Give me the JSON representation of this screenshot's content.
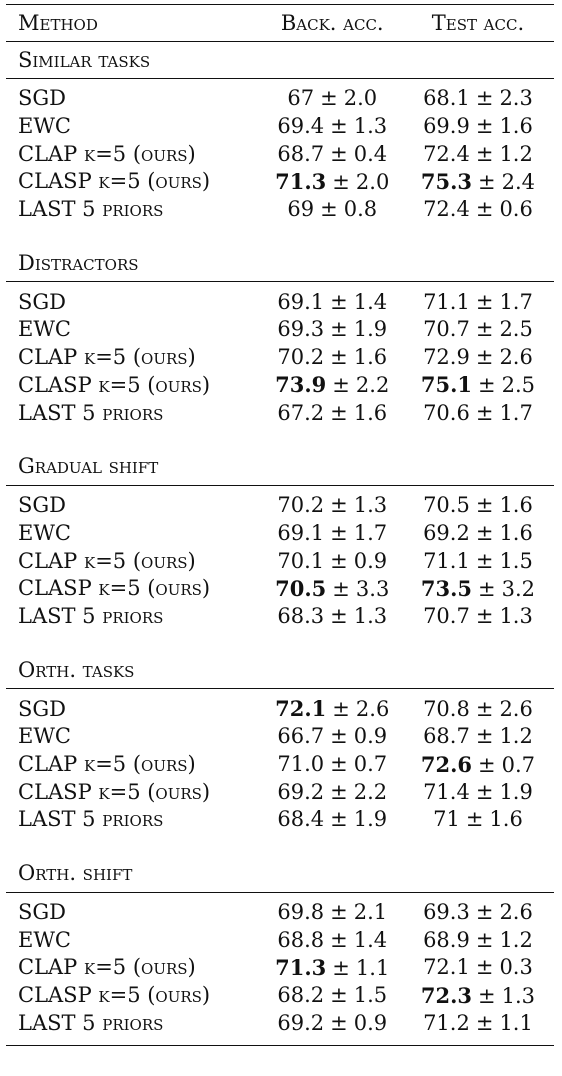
{
  "header": {
    "method": "Method",
    "back": "Back. acc.",
    "test": "Test acc."
  },
  "pm_symbol": "±",
  "sections": [
    {
      "title": "Similar tasks",
      "rows": [
        {
          "method_main": "SGD",
          "method_suffix": "",
          "back": "67",
          "back_sd": "2.0",
          "back_bold": false,
          "test": "68.1",
          "test_sd": "2.3",
          "test_bold": false
        },
        {
          "method_main": "EWC",
          "method_suffix": "",
          "back": "69.4",
          "back_sd": "1.3",
          "back_bold": false,
          "test": "69.9",
          "test_sd": "1.6",
          "test_bold": false
        },
        {
          "method_main": "CLAP",
          "method_suffix": "k=5 (ours)",
          "back": "68.7",
          "back_sd": "0.4",
          "back_bold": false,
          "test": "72.4",
          "test_sd": "1.2",
          "test_bold": false
        },
        {
          "method_main": "CLASP",
          "method_suffix": "k=5 (ours)",
          "back": "71.3",
          "back_sd": "2.0",
          "back_bold": true,
          "test": "75.3",
          "test_sd": "2.4",
          "test_bold": true
        },
        {
          "method_main": "LAST 5",
          "method_suffix": "priors",
          "back": "69",
          "back_sd": "0.8",
          "back_bold": false,
          "test": "72.4",
          "test_sd": "0.6",
          "test_bold": false
        }
      ]
    },
    {
      "title": "Distractors",
      "rows": [
        {
          "method_main": "SGD",
          "method_suffix": "",
          "back": "69.1",
          "back_sd": "1.4",
          "back_bold": false,
          "test": "71.1",
          "test_sd": "1.7",
          "test_bold": false
        },
        {
          "method_main": "EWC",
          "method_suffix": "",
          "back": "69.3",
          "back_sd": "1.9",
          "back_bold": false,
          "test": "70.7",
          "test_sd": "2.5",
          "test_bold": false
        },
        {
          "method_main": "CLAP",
          "method_suffix": "k=5 (ours)",
          "back": "70.2",
          "back_sd": "1.6",
          "back_bold": false,
          "test": "72.9",
          "test_sd": "2.6",
          "test_bold": false
        },
        {
          "method_main": "CLASP",
          "method_suffix": "k=5 (ours)",
          "back": "73.9",
          "back_sd": "2.2",
          "back_bold": true,
          "test": "75.1",
          "test_sd": "2.5",
          "test_bold": true
        },
        {
          "method_main": "LAST 5",
          "method_suffix": "priors",
          "back": "67.2",
          "back_sd": "1.6",
          "back_bold": false,
          "test": "70.6",
          "test_sd": "1.7",
          "test_bold": false
        }
      ]
    },
    {
      "title": "Gradual shift",
      "rows": [
        {
          "method_main": "SGD",
          "method_suffix": "",
          "back": "70.2",
          "back_sd": "1.3",
          "back_bold": false,
          "test": "70.5",
          "test_sd": "1.6",
          "test_bold": false
        },
        {
          "method_main": "EWC",
          "method_suffix": "",
          "back": "69.1",
          "back_sd": "1.7",
          "back_bold": false,
          "test": "69.2",
          "test_sd": "1.6",
          "test_bold": false
        },
        {
          "method_main": "CLAP",
          "method_suffix": "k=5 (ours)",
          "back": "70.1",
          "back_sd": "0.9",
          "back_bold": false,
          "test": "71.1",
          "test_sd": "1.5",
          "test_bold": false
        },
        {
          "method_main": "CLASP",
          "method_suffix": "k=5 (ours)",
          "back": "70.5",
          "back_sd": "3.3",
          "back_bold": true,
          "test": "73.5",
          "test_sd": "3.2",
          "test_bold": true
        },
        {
          "method_main": "LAST 5",
          "method_suffix": "priors",
          "back": "68.3",
          "back_sd": "1.3",
          "back_bold": false,
          "test": "70.7",
          "test_sd": "1.3",
          "test_bold": false
        }
      ]
    },
    {
      "title": "Orth. tasks",
      "rows": [
        {
          "method_main": "SGD",
          "method_suffix": "",
          "back": "72.1",
          "back_sd": "2.6",
          "back_bold": true,
          "test": "70.8",
          "test_sd": "2.6",
          "test_bold": false
        },
        {
          "method_main": "EWC",
          "method_suffix": "",
          "back": "66.7",
          "back_sd": "0.9",
          "back_bold": false,
          "test": "68.7",
          "test_sd": "1.2",
          "test_bold": false
        },
        {
          "method_main": "CLAP",
          "method_suffix": "k=5 (ours)",
          "back": "71.0",
          "back_sd": "0.7",
          "back_bold": false,
          "test": "72.6",
          "test_sd": "0.7",
          "test_bold": true
        },
        {
          "method_main": "CLASP",
          "method_suffix": "k=5 (ours)",
          "back": "69.2",
          "back_sd": "2.2",
          "back_bold": false,
          "test": "71.4",
          "test_sd": "1.9",
          "test_bold": false
        },
        {
          "method_main": "LAST 5",
          "method_suffix": "priors",
          "back": "68.4",
          "back_sd": "1.9",
          "back_bold": false,
          "test": "71",
          "test_sd": "1.6",
          "test_bold": false
        }
      ]
    },
    {
      "title": "Orth. shift",
      "rows": [
        {
          "method_main": "SGD",
          "method_suffix": "",
          "back": "69.8",
          "back_sd": "2.1",
          "back_bold": false,
          "test": "69.3",
          "test_sd": "2.6",
          "test_bold": false
        },
        {
          "method_main": "EWC",
          "method_suffix": "",
          "back": "68.8",
          "back_sd": "1.4",
          "back_bold": false,
          "test": "68.9",
          "test_sd": "1.2",
          "test_bold": false
        },
        {
          "method_main": "CLAP",
          "method_suffix": "k=5 (ours)",
          "back": "71.3",
          "back_sd": "1.1",
          "back_bold": true,
          "test": "72.1",
          "test_sd": "0.3",
          "test_bold": false
        },
        {
          "method_main": "CLASP",
          "method_suffix": "k=5 (ours)",
          "back": "68.2",
          "back_sd": "1.5",
          "back_bold": false,
          "test": "72.3",
          "test_sd": "1.3",
          "test_bold": true
        },
        {
          "method_main": "LAST 5",
          "method_suffix": "priors",
          "back": "69.2",
          "back_sd": "0.9",
          "back_bold": false,
          "test": "71.2",
          "test_sd": "1.1",
          "test_bold": false
        }
      ]
    }
  ]
}
